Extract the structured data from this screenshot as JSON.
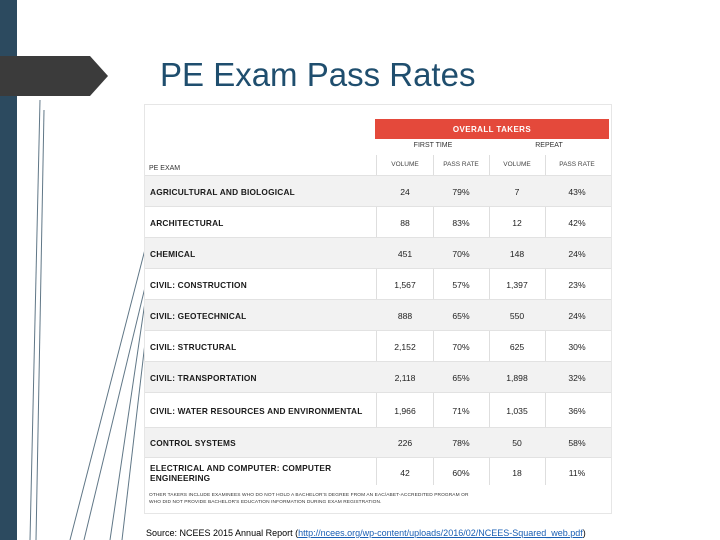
{
  "slide": {
    "title": "PE Exam Pass Rates",
    "source_prefix": "Source: NCEES 2015 Annual Report (",
    "source_link": "http://ncees.org/wp-content/uploads/2016/02/NCEES-Squared_web.pdf",
    "source_suffix": ")"
  },
  "colors": {
    "accent": "#e4493b",
    "sidebar": "#2c4a5f",
    "title": "#1f4e6e"
  },
  "table": {
    "header": "OVERALL TAKERS",
    "groups": [
      "FIRST TIME",
      "REPEAT"
    ],
    "pe_exam_label": "PE EXAM",
    "columns": [
      "VOLUME",
      "PASS RATE",
      "VOLUME",
      "PASS RATE"
    ],
    "rows": [
      {
        "name": "AGRICULTURAL AND BIOLOGICAL",
        "v1": "24",
        "p1": "79%",
        "v2": "7",
        "p2": "43%"
      },
      {
        "name": "ARCHITECTURAL",
        "v1": "88",
        "p1": "83%",
        "v2": "12",
        "p2": "42%"
      },
      {
        "name": "CHEMICAL",
        "v1": "451",
        "p1": "70%",
        "v2": "148",
        "p2": "24%"
      },
      {
        "name": "CIVIL: CONSTRUCTION",
        "v1": "1,567",
        "p1": "57%",
        "v2": "1,397",
        "p2": "23%"
      },
      {
        "name": "CIVIL: GEOTECHNICAL",
        "v1": "888",
        "p1": "65%",
        "v2": "550",
        "p2": "24%"
      },
      {
        "name": "CIVIL: STRUCTURAL",
        "v1": "2,152",
        "p1": "70%",
        "v2": "625",
        "p2": "30%"
      },
      {
        "name": "CIVIL: TRANSPORTATION",
        "v1": "2,118",
        "p1": "65%",
        "v2": "1,898",
        "p2": "32%"
      },
      {
        "name": "CIVIL: WATER RESOURCES AND ENVIRONMENTAL",
        "v1": "1,966",
        "p1": "71%",
        "v2": "1,035",
        "p2": "36%"
      },
      {
        "name": "CONTROL SYSTEMS",
        "v1": "226",
        "p1": "78%",
        "v2": "50",
        "p2": "58%"
      },
      {
        "name": "ELECTRICAL AND COMPUTER: COMPUTER ENGINEERING",
        "v1": "42",
        "p1": "60%",
        "v2": "18",
        "p2": "11%"
      }
    ],
    "footnote": "OTHER TAKERS INCLUDE EXAMINEES WHO DO NOT HOLD A BACHELOR'S DEGREE FROM AN EAC/ABET-ACCREDITED PROGRAM OR WHO DID NOT PROVIDE BACHELOR'S EDUCATION INFORMATION DURING EXAM REGISTRATION."
  }
}
